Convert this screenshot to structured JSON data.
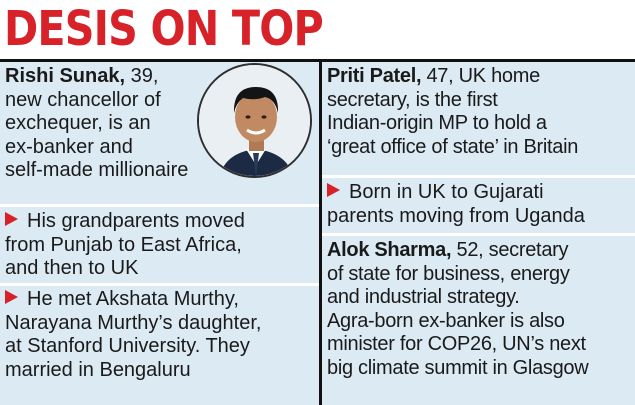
{
  "headline": "DESIS ON TOP",
  "rishi": {
    "name": "Rishi Sunak,",
    "intro": [
      " 39,",
      "new chancellor of",
      "exchequer, is an",
      "ex-banker and",
      "self-made millionaire"
    ],
    "point1": [
      "His grandparents moved",
      "from Punjab to East Africa,",
      "and then to UK"
    ],
    "point2": [
      "He met Akshata Murthy,",
      "Narayana Murthy’s daughter,",
      "at Stanford University. They",
      "married in Bengaluru"
    ]
  },
  "priti": {
    "name": "Priti Patel,",
    "intro": [
      " 47, UK home",
      "secretary, is the first",
      "Indian-origin MP to hold a",
      "‘great office of state’ in Britain"
    ],
    "point1": [
      "Born in UK to Gujarati",
      "parents moving from Uganda"
    ]
  },
  "alok": {
    "name": "Alok Sharma,",
    "intro": [
      " 52, secretary",
      "of state for business, energy",
      "and industrial strategy.",
      "Agra-born ex-banker is also",
      "minister for COP26, UN’s next",
      "big climate summit in Glasgow"
    ]
  },
  "colors": {
    "headline": "#d7222a",
    "box": "#dceaf4",
    "arrow": "#d7222a"
  }
}
